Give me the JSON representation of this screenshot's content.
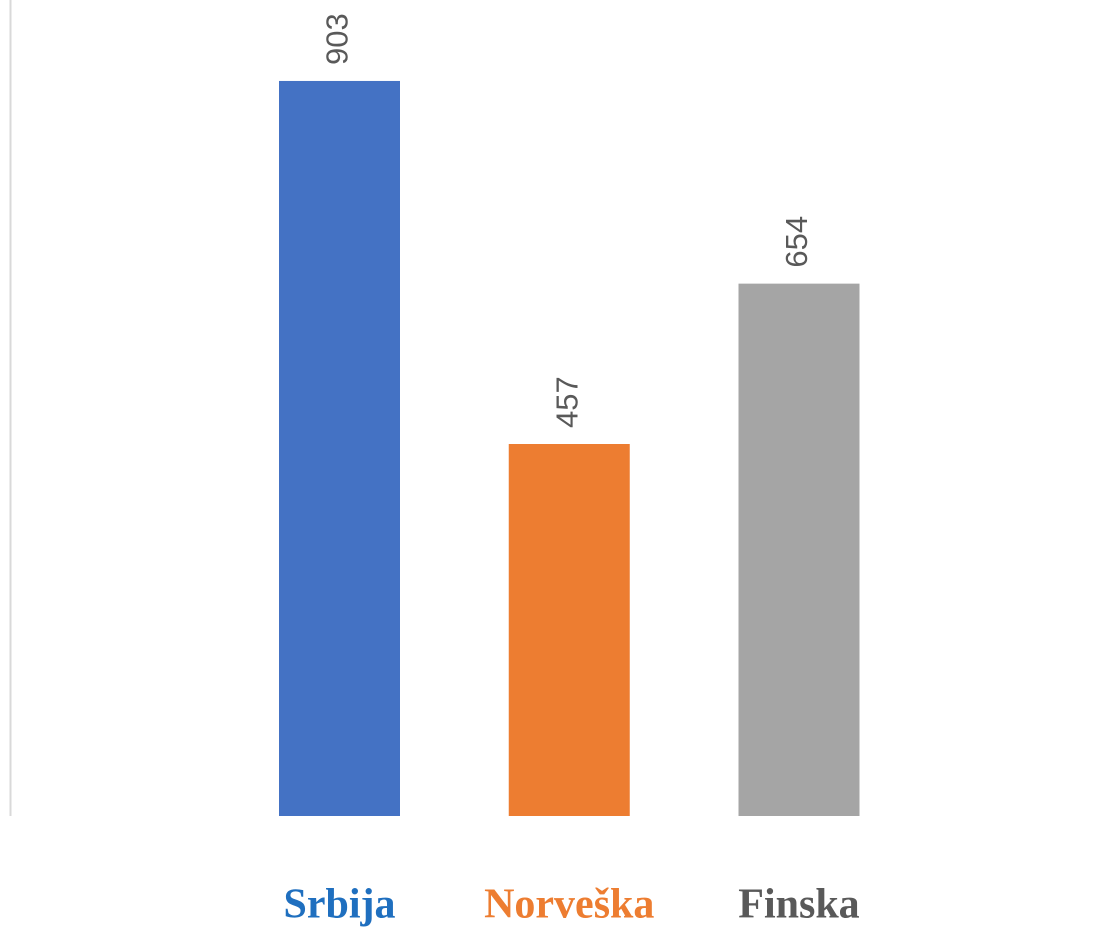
{
  "chart_data": {
    "type": "bar",
    "categories": [
      "Srbija",
      "Norveška",
      "Finska"
    ],
    "values": [
      903,
      457,
      654
    ],
    "colors": [
      "#4472c4",
      "#ed7d31",
      "#a5a5a5"
    ],
    "label_colors": [
      "#1f6fbf",
      "#ed7d31",
      "#595959"
    ],
    "ylim": [
      0,
      1000
    ]
  }
}
